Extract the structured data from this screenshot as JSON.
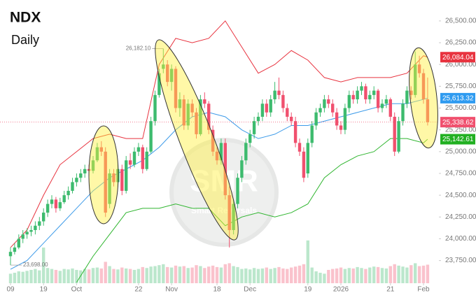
{
  "chart_data": {
    "type": "candlestick",
    "title": "NDX",
    "subtitle": "Daily",
    "ylim": [
      23490,
      26740
    ],
    "yticks": [
      {
        "value": 23750,
        "label": "23,750.00"
      },
      {
        "value": 24000,
        "label": "24,000.00"
      },
      {
        "value": 24250,
        "label": "24,250.00"
      },
      {
        "value": 24500,
        "label": "24,500.00"
      },
      {
        "value": 24750,
        "label": "24,750.00"
      },
      {
        "value": 25000,
        "label": "25,000.00"
      },
      {
        "value": 25250,
        "label": "25,250.00"
      },
      {
        "value": 25500,
        "label": "25,500.00"
      },
      {
        "value": 25750,
        "label": "25,750.00"
      },
      {
        "value": 26000,
        "label": "26,000.00"
      },
      {
        "value": 26250,
        "label": "26,250.00"
      },
      {
        "value": 26500,
        "label": "26,500.00"
      }
    ],
    "xticks": [
      {
        "value": 0,
        "label": "09"
      },
      {
        "value": 8,
        "label": "19"
      },
      {
        "value": 16,
        "label": "Oct"
      },
      {
        "value": 31,
        "label": "22"
      },
      {
        "value": 39,
        "label": "Nov"
      },
      {
        "value": 50,
        "label": "18"
      },
      {
        "value": 58,
        "label": "Dec"
      },
      {
        "value": 72,
        "label": "19"
      },
      {
        "value": 80,
        "label": "2026"
      },
      {
        "value": 92,
        "label": "21"
      },
      {
        "value": 100,
        "label": "Feb"
      }
    ],
    "up_color": "#3dbb6e",
    "down_color": "#f0506e",
    "ohlc": [
      [
        23800,
        23900,
        23698.0,
        23850
      ],
      [
        23850,
        23950,
        23820,
        23900
      ],
      [
        23900,
        24050,
        23880,
        24000
      ],
      [
        24000,
        24100,
        23950,
        24050
      ],
      [
        24050,
        24120,
        24000,
        24080
      ],
      [
        24080,
        24150,
        24030,
        24100
      ],
      [
        24100,
        24200,
        24050,
        24150
      ],
      [
        24150,
        24250,
        24100,
        24200
      ],
      [
        24200,
        24350,
        24150,
        24300
      ],
      [
        24300,
        24450,
        24250,
        24400
      ],
      [
        24400,
        24500,
        24350,
        24450
      ],
      [
        24450,
        24480,
        24300,
        24350
      ],
      [
        24350,
        24470,
        24320,
        24420
      ],
      [
        24420,
        24550,
        24400,
        24500
      ],
      [
        24500,
        24600,
        24450,
        24550
      ],
      [
        24550,
        24700,
        24520,
        24650
      ],
      [
        24650,
        24750,
        24600,
        24700
      ],
      [
        24700,
        24800,
        24650,
        24750
      ],
      [
        24750,
        24850,
        24700,
        24800
      ],
      [
        24800,
        24850,
        24720,
        24780
      ],
      [
        24780,
        24950,
        24750,
        24900
      ],
      [
        24900,
        25100,
        24880,
        25050
      ],
      [
        25050,
        25120,
        24950,
        25000
      ],
      [
        25000,
        25050,
        24250,
        24300
      ],
      [
        24400,
        24800,
        24350,
        24750
      ],
      [
        24750,
        24800,
        24600,
        24650
      ],
      [
        24650,
        24850,
        24600,
        24800
      ],
      [
        24800,
        24850,
        24500,
        24550
      ],
      [
        24550,
        24950,
        24520,
        24900
      ],
      [
        24900,
        24980,
        24800,
        24850
      ],
      [
        24850,
        25050,
        24820,
        25000
      ],
      [
        25000,
        25100,
        24950,
        25050
      ],
      [
        25050,
        25080,
        24750,
        24800
      ],
      [
        24800,
        25050,
        24780,
        25000
      ],
      [
        25000,
        25400,
        24980,
        25350
      ],
      [
        25350,
        25700,
        25300,
        25650
      ],
      [
        25650,
        25950,
        25620,
        25900
      ],
      [
        25950,
        26182.1,
        25900,
        26000
      ],
      [
        26000,
        26050,
        25750,
        25800
      ],
      [
        25800,
        26000,
        25700,
        25950
      ],
      [
        25950,
        25980,
        25450,
        25500
      ],
      [
        25500,
        25680,
        25400,
        25600
      ],
      [
        25600,
        25650,
        25250,
        25300
      ],
      [
        25300,
        25600,
        25250,
        25550
      ],
      [
        25550,
        25600,
        25400,
        25450
      ],
      [
        25450,
        25500,
        25150,
        25200
      ],
      [
        25200,
        25650,
        25180,
        25600
      ],
      [
        25600,
        25680,
        25500,
        25550
      ],
      [
        25550,
        25580,
        25200,
        25250
      ],
      [
        25250,
        25300,
        24950,
        25000
      ],
      [
        25000,
        25050,
        24850,
        24900
      ],
      [
        24900,
        25150,
        24850,
        25100
      ],
      [
        25100,
        25150,
        24450,
        24500
      ],
      [
        24500,
        24600,
        23900,
        24100
      ],
      [
        24100,
        24450,
        24050,
        24400
      ],
      [
        24400,
        24750,
        24350,
        24700
      ],
      [
        24700,
        24950,
        24650,
        24900
      ],
      [
        24900,
        25150,
        24850,
        25100
      ],
      [
        25100,
        25250,
        25050,
        25200
      ],
      [
        25200,
        25400,
        25150,
        25350
      ],
      [
        25350,
        25450,
        25300,
        25400
      ],
      [
        25400,
        25600,
        25350,
        25550
      ],
      [
        25550,
        25600,
        25400,
        25450
      ],
      [
        25450,
        25650,
        25400,
        25600
      ],
      [
        25600,
        25800,
        25550,
        25700
      ],
      [
        25700,
        25850,
        25600,
        25650
      ],
      [
        25650,
        25700,
        25450,
        25500
      ],
      [
        25500,
        25550,
        25350,
        25400
      ],
      [
        25400,
        25450,
        25300,
        25350
      ],
      [
        25350,
        25400,
        25050,
        25100
      ],
      [
        25100,
        25150,
        24950,
        25000
      ],
      [
        25000,
        25050,
        24650,
        24700
      ],
      [
        24750,
        25150,
        24700,
        25100
      ],
      [
        25100,
        25350,
        25050,
        25300
      ],
      [
        25300,
        25500,
        25250,
        25450
      ],
      [
        25450,
        25550,
        25400,
        25500
      ],
      [
        25500,
        25650,
        25450,
        25600
      ],
      [
        25600,
        25650,
        25500,
        25550
      ],
      [
        25550,
        25600,
        25400,
        25450
      ],
      [
        25450,
        25500,
        25250,
        25300
      ],
      [
        25300,
        25350,
        25200,
        25250
      ],
      [
        25250,
        25550,
        25200,
        25500
      ],
      [
        25500,
        25700,
        25450,
        25650
      ],
      [
        25650,
        25700,
        25550,
        25600
      ],
      [
        25600,
        25750,
        25550,
        25700
      ],
      [
        25700,
        25800,
        25650,
        25750
      ],
      [
        25750,
        25780,
        25550,
        25600
      ],
      [
        25600,
        25700,
        25550,
        25650
      ],
      [
        25650,
        25750,
        25600,
        25700
      ],
      [
        25700,
        25720,
        25450,
        25500
      ],
      [
        25500,
        25600,
        25450,
        25550
      ],
      [
        25550,
        25650,
        25500,
        25600
      ],
      [
        25600,
        25620,
        25350,
        25400
      ],
      [
        25400,
        25450,
        24950,
        25000
      ],
      [
        25000,
        25400,
        24980,
        25350
      ],
      [
        25350,
        25600,
        25300,
        25550
      ],
      [
        25550,
        25750,
        25500,
        25700
      ],
      [
        25700,
        25750,
        25600,
        25650
      ],
      [
        25650,
        26150,
        25620,
        26000
      ],
      [
        26000,
        26100,
        25850,
        25900
      ],
      [
        25900,
        25950,
        25550,
        25600
      ],
      [
        25600,
        25850,
        25300,
        25338.62
      ]
    ],
    "volume": [
      20,
      22,
      25,
      24,
      26,
      28,
      30,
      27,
      75,
      32,
      30,
      28,
      26,
      30,
      29,
      31,
      28,
      27,
      30,
      29,
      32,
      33,
      31,
      45,
      36,
      30,
      29,
      33,
      31,
      30,
      28,
      30,
      34,
      32,
      35,
      36,
      38,
      40,
      34,
      33,
      37,
      35,
      36,
      32,
      33,
      38,
      36,
      32,
      35,
      37,
      34,
      33,
      40,
      42,
      36,
      34,
      30,
      31,
      29,
      32,
      30,
      31,
      33,
      30,
      32,
      34,
      31,
      30,
      33,
      35,
      37,
      40,
      90,
      33,
      25,
      22,
      20,
      28,
      30,
      31,
      33,
      30,
      32,
      31,
      34,
      32,
      30,
      33,
      35,
      34,
      32,
      31,
      36,
      40,
      37,
      35,
      33,
      38,
      42,
      36,
      37,
      39
    ],
    "last_close_label": "25,338.62",
    "high_label": "26,182.10",
    "low_label": "23,698.00",
    "bands": {
      "x": [
        0,
        4,
        8,
        12,
        16,
        20,
        24,
        28,
        32,
        36,
        40,
        44,
        48,
        52,
        56,
        60,
        64,
        68,
        72,
        76,
        80,
        84,
        88,
        92,
        96,
        100,
        101
      ],
      "upper": {
        "color": "#e8333f",
        "label_color": "#e8333f",
        "last_label": "26,084.04",
        "values": [
          23900,
          24100,
          24500,
          24850,
          25000,
          25150,
          25200,
          25150,
          25150,
          26000,
          26300,
          26250,
          26300,
          26500,
          26200,
          25900,
          26000,
          26160,
          26050,
          25850,
          25800,
          25850,
          25850,
          25850,
          25900,
          26100,
          26084.04
        ]
      },
      "middle": {
        "color": "#3d9be9",
        "label_color": "#2f9bf0",
        "last_label": "25,613.32",
        "values": [
          23650,
          23750,
          23950,
          24150,
          24350,
          24550,
          24700,
          24800,
          24900,
          25050,
          25250,
          25400,
          25450,
          25400,
          25250,
          25150,
          25200,
          25300,
          25300,
          25350,
          25400,
          25450,
          25500,
          25550,
          25550,
          25600,
          25613.32
        ]
      },
      "lower": {
        "color": "#2fb52f",
        "label_color": "#22b022",
        "last_label": "25,142.61",
        "values": [
          null,
          null,
          null,
          null,
          23500,
          23800,
          24050,
          24300,
          24350,
          24350,
          24400,
          24350,
          24350,
          24150,
          24250,
          24300,
          24250,
          24300,
          24400,
          24700,
          24850,
          24950,
          25000,
          25150,
          25150,
          25100,
          25142.61
        ]
      }
    },
    "watermark": {
      "logo": "SMR",
      "text": "Smart Reversals"
    }
  }
}
